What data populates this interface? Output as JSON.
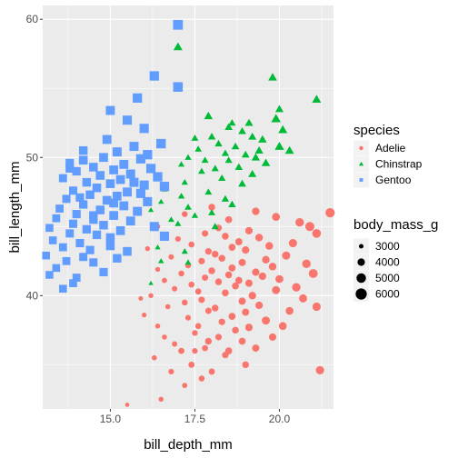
{
  "chart_data": {
    "type": "scatter",
    "xlabel": "bill_depth_mm",
    "ylabel": "bill_length_mm",
    "xlim": [
      13.0,
      21.6
    ],
    "ylim": [
      31.8,
      61.0
    ],
    "x_ticks": [
      15.0,
      17.5,
      20.0
    ],
    "x_tick_labels": [
      "15.0",
      "17.5",
      "20.0"
    ],
    "y_ticks": [
      40,
      50,
      60
    ],
    "y_tick_labels": [
      "40",
      "50",
      "60"
    ],
    "grid": true,
    "panel_background": "#ebebeb",
    "legend_position": "right",
    "legend": {
      "color_title": "species",
      "size_title": "body_mass_g",
      "size_levels": [
        3000,
        4000,
        5000,
        6000
      ],
      "size_labels": [
        "3000",
        "4000",
        "5000",
        "6000"
      ]
    },
    "series": [
      {
        "name": "Adelie",
        "color": "#F8766D",
        "marker": "circle",
        "points": [
          [
            15.5,
            32.1,
            2900
          ],
          [
            16.5,
            32.5,
            3100
          ],
          [
            17.2,
            33.5,
            3200
          ],
          [
            17.7,
            34.0,
            3400
          ],
          [
            16.8,
            34.5,
            3300
          ],
          [
            18.0,
            34.5,
            3500
          ],
          [
            21.2,
            34.6,
            4400
          ],
          [
            19.0,
            35.0,
            3700
          ],
          [
            17.4,
            35.0,
            3500
          ],
          [
            16.3,
            35.5,
            3150
          ],
          [
            18.4,
            35.7,
            3600
          ],
          [
            17.1,
            36.0,
            3500
          ],
          [
            18.5,
            36.0,
            3800
          ],
          [
            19.3,
            36.2,
            3900
          ],
          [
            17.8,
            36.2,
            3450
          ],
          [
            16.9,
            36.5,
            3250
          ],
          [
            17.9,
            36.7,
            3700
          ],
          [
            18.9,
            36.7,
            3800
          ],
          [
            16.6,
            37.0,
            3150
          ],
          [
            19.8,
            37.0,
            3950
          ],
          [
            18.2,
            37.0,
            3600
          ],
          [
            17.5,
            37.3,
            3350
          ],
          [
            18.7,
            37.5,
            3700
          ],
          [
            19.1,
            37.7,
            4000
          ],
          [
            16.4,
            37.8,
            3100
          ],
          [
            17.6,
            37.8,
            3400
          ],
          [
            20.1,
            37.8,
            4200
          ],
          [
            18.3,
            38.1,
            3650
          ],
          [
            19.6,
            38.2,
            4300
          ],
          [
            17.3,
            38.4,
            3300
          ],
          [
            18.6,
            38.5,
            3800
          ],
          [
            16.0,
            38.6,
            3050
          ],
          [
            19.0,
            38.8,
            3900
          ],
          [
            17.9,
            38.9,
            3550
          ],
          [
            20.3,
            38.9,
            4150
          ],
          [
            18.1,
            39.1,
            3700
          ],
          [
            16.7,
            39.2,
            3150
          ],
          [
            21.1,
            39.2,
            4400
          ],
          [
            19.4,
            39.3,
            4000
          ],
          [
            17.2,
            39.5,
            3400
          ],
          [
            18.9,
            39.6,
            3900
          ],
          [
            17.7,
            39.7,
            3600
          ],
          [
            20.7,
            39.8,
            4300
          ],
          [
            16.2,
            40.0,
            3100
          ],
          [
            19.2,
            40.0,
            4050
          ],
          [
            18.4,
            40.2,
            3750
          ],
          [
            17.6,
            40.3,
            3500
          ],
          [
            19.9,
            40.4,
            4250
          ],
          [
            16.9,
            40.5,
            3250
          ],
          [
            20.5,
            40.6,
            4450
          ],
          [
            18.7,
            40.7,
            3800
          ],
          [
            17.4,
            40.8,
            3450
          ],
          [
            19.1,
            40.9,
            3950
          ],
          [
            18.2,
            41.0,
            3700
          ],
          [
            16.6,
            41.1,
            3200
          ],
          [
            18.8,
            41.1,
            3850
          ],
          [
            20.0,
            41.2,
            4200
          ],
          [
            17.8,
            41.3,
            3550
          ],
          [
            19.5,
            41.4,
            4000
          ],
          [
            18.5,
            41.5,
            3750
          ],
          [
            17.1,
            41.6,
            3400
          ],
          [
            21.0,
            41.6,
            4700
          ],
          [
            19.3,
            41.7,
            3950
          ],
          [
            18.0,
            41.8,
            3700
          ],
          [
            16.4,
            41.9,
            3100
          ],
          [
            18.6,
            42.0,
            3850
          ],
          [
            19.8,
            42.1,
            4100
          ],
          [
            17.3,
            42.2,
            3450
          ],
          [
            20.8,
            42.3,
            4500
          ],
          [
            18.9,
            42.4,
            3900
          ],
          [
            17.7,
            42.5,
            3600
          ],
          [
            19.6,
            42.6,
            4050
          ],
          [
            18.3,
            42.7,
            3750
          ],
          [
            16.8,
            42.8,
            3250
          ],
          [
            20.2,
            42.9,
            4300
          ],
          [
            18.1,
            43.0,
            3700
          ],
          [
            17.9,
            43.2,
            3650
          ],
          [
            19.0,
            43.3,
            4000
          ],
          [
            16.1,
            43.4,
            3100
          ],
          [
            18.6,
            43.5,
            3800
          ],
          [
            19.7,
            43.6,
            4100
          ],
          [
            17.4,
            43.7,
            3450
          ],
          [
            20.4,
            43.8,
            4350
          ],
          [
            18.8,
            43.9,
            3900
          ],
          [
            17.0,
            44.1,
            3300
          ],
          [
            19.4,
            44.2,
            4050
          ],
          [
            18.4,
            44.3,
            3750
          ],
          [
            17.8,
            44.5,
            3600
          ],
          [
            21.1,
            44.5,
            4600
          ],
          [
            19.1,
            44.7,
            4000
          ],
          [
            18.2,
            44.9,
            3700
          ],
          [
            16.4,
            45.0,
            3150
          ],
          [
            20.6,
            45.3,
            4500
          ],
          [
            18.5,
            45.5,
            3800
          ],
          [
            19.9,
            45.7,
            4200
          ],
          [
            17.2,
            45.9,
            3400
          ],
          [
            19.3,
            46.1,
            4050
          ],
          [
            18.0,
            46.4,
            3700
          ],
          [
            20.9,
            45.0,
            4800
          ],
          [
            21.5,
            46.0,
            4900
          ],
          [
            15.9,
            39.8,
            3000
          ],
          [
            17.5,
            36.0,
            3300
          ]
        ]
      },
      {
        "name": "Chinstrap",
        "color": "#00BA38",
        "marker": "triangle",
        "points": [
          [
            17.0,
            58.0,
            4100
          ],
          [
            19.8,
            55.8,
            4000
          ],
          [
            21.1,
            54.2,
            4100
          ],
          [
            20.0,
            53.5,
            3800
          ],
          [
            17.9,
            53.0,
            3950
          ],
          [
            19.9,
            52.8,
            4300
          ],
          [
            18.6,
            52.5,
            3550
          ],
          [
            20.1,
            52.0,
            4150
          ],
          [
            18.9,
            51.9,
            3700
          ],
          [
            19.2,
            51.5,
            3750
          ],
          [
            17.5,
            51.4,
            3450
          ],
          [
            19.5,
            51.3,
            3900
          ],
          [
            18.2,
            51.0,
            3600
          ],
          [
            18.7,
            50.8,
            3650
          ],
          [
            17.6,
            50.6,
            3400
          ],
          [
            19.4,
            50.5,
            3850
          ],
          [
            18.4,
            50.3,
            3550
          ],
          [
            19.0,
            50.2,
            3700
          ],
          [
            17.3,
            50.0,
            3300
          ],
          [
            18.5,
            49.8,
            3500
          ],
          [
            19.6,
            49.6,
            3950
          ],
          [
            17.1,
            49.5,
            3250
          ],
          [
            18.8,
            49.3,
            3650
          ],
          [
            18.1,
            49.2,
            3500
          ],
          [
            17.7,
            49.0,
            3400
          ],
          [
            19.2,
            48.8,
            3800
          ],
          [
            18.3,
            48.5,
            3550
          ],
          [
            17.2,
            48.2,
            3300
          ],
          [
            18.9,
            48.1,
            3700
          ],
          [
            16.6,
            47.7,
            3200
          ],
          [
            17.9,
            47.5,
            3450
          ],
          [
            17.1,
            47.2,
            3350
          ],
          [
            18.4,
            47.0,
            3550
          ],
          [
            16.5,
            46.8,
            3100
          ],
          [
            18.6,
            46.6,
            3600
          ],
          [
            17.3,
            46.4,
            3400
          ],
          [
            16.2,
            46.2,
            3050
          ],
          [
            18.0,
            46.0,
            3450
          ],
          [
            17.5,
            45.8,
            3300
          ],
          [
            16.8,
            45.5,
            3200
          ],
          [
            17.0,
            45.2,
            3250
          ],
          [
            18.1,
            45.0,
            3500
          ],
          [
            16.4,
            43.5,
            3050
          ],
          [
            17.2,
            43.2,
            3250
          ],
          [
            16.5,
            42.5,
            3100
          ],
          [
            16.2,
            40.9,
            2900
          ],
          [
            17.3,
            42.4,
            3200
          ],
          [
            19.3,
            50.0,
            3850
          ],
          [
            20.3,
            50.5,
            4050
          ],
          [
            18.0,
            51.5,
            3650
          ],
          [
            19.1,
            52.5,
            3800
          ],
          [
            17.8,
            49.8,
            3450
          ],
          [
            18.5,
            52.2,
            3700
          ],
          [
            20.0,
            50.8,
            4200
          ]
        ]
      },
      {
        "name": "Gentoo",
        "color": "#619CFF",
        "marker": "square",
        "points": [
          [
            17.0,
            59.6,
            6000
          ],
          [
            16.3,
            55.9,
            5700
          ],
          [
            17.0,
            55.1,
            5850
          ],
          [
            15.8,
            54.3,
            5650
          ],
          [
            15.0,
            53.4,
            5450
          ],
          [
            15.5,
            52.7,
            5550
          ],
          [
            16.0,
            52.1,
            5600
          ],
          [
            14.9,
            51.3,
            5400
          ],
          [
            16.5,
            51.0,
            5750
          ],
          [
            15.7,
            50.8,
            5500
          ],
          [
            14.2,
            50.5,
            5150
          ],
          [
            15.2,
            50.4,
            5500
          ],
          [
            16.1,
            50.2,
            5700
          ],
          [
            14.8,
            50.0,
            5300
          ],
          [
            15.9,
            49.9,
            5650
          ],
          [
            13.8,
            49.6,
            5000
          ],
          [
            15.4,
            49.5,
            5400
          ],
          [
            14.5,
            49.3,
            5200
          ],
          [
            16.2,
            49.2,
            5650
          ],
          [
            15.1,
            49.1,
            5350
          ],
          [
            14.0,
            49.0,
            5050
          ],
          [
            15.6,
            48.8,
            5500
          ],
          [
            14.7,
            48.7,
            5250
          ],
          [
            16.4,
            48.6,
            5700
          ],
          [
            13.6,
            48.5,
            4850
          ],
          [
            15.3,
            48.4,
            5350
          ],
          [
            14.3,
            48.2,
            5150
          ],
          [
            15.0,
            48.1,
            5300
          ],
          [
            16.0,
            48.0,
            5550
          ],
          [
            14.6,
            47.8,
            5200
          ],
          [
            13.9,
            47.6,
            4950
          ],
          [
            15.5,
            47.5,
            5450
          ],
          [
            14.4,
            47.3,
            5150
          ],
          [
            15.2,
            47.2,
            5300
          ],
          [
            13.7,
            47.0,
            4900
          ],
          [
            14.9,
            46.9,
            5250
          ],
          [
            16.1,
            46.8,
            5550
          ],
          [
            14.2,
            46.6,
            5050
          ],
          [
            15.4,
            46.5,
            5350
          ],
          [
            13.5,
            46.3,
            4800
          ],
          [
            14.7,
            46.2,
            5200
          ],
          [
            15.8,
            46.1,
            5450
          ],
          [
            14.0,
            45.9,
            5000
          ],
          [
            15.1,
            45.8,
            5300
          ],
          [
            13.4,
            45.6,
            4750
          ],
          [
            14.5,
            45.5,
            5100
          ],
          [
            15.6,
            45.4,
            5400
          ],
          [
            13.9,
            45.2,
            4950
          ],
          [
            14.8,
            45.1,
            5200
          ],
          [
            16.3,
            45.0,
            5550
          ],
          [
            13.2,
            44.9,
            4700
          ],
          [
            14.3,
            44.8,
            5050
          ],
          [
            15.3,
            44.7,
            5300
          ],
          [
            13.8,
            44.5,
            4900
          ],
          [
            14.6,
            44.4,
            5100
          ],
          [
            16.6,
            44.3,
            5600
          ],
          [
            13.3,
            44.0,
            4700
          ],
          [
            14.1,
            43.8,
            4950
          ],
          [
            15.0,
            43.6,
            5200
          ],
          [
            13.6,
            43.5,
            4800
          ],
          [
            14.4,
            43.3,
            5000
          ],
          [
            15.5,
            43.2,
            5250
          ],
          [
            13.1,
            42.9,
            4650
          ],
          [
            14.2,
            42.8,
            4900
          ],
          [
            15.2,
            42.7,
            5150
          ],
          [
            13.7,
            42.5,
            4750
          ],
          [
            14.5,
            42.4,
            4950
          ],
          [
            13.4,
            42.0,
            4650
          ],
          [
            14.8,
            41.7,
            5000
          ],
          [
            14.0,
            41.3,
            4800
          ],
          [
            13.9,
            40.9,
            4750
          ],
          [
            13.6,
            40.5,
            4700
          ],
          [
            13.2,
            41.5,
            4650
          ],
          [
            15.1,
            46.7,
            5350
          ],
          [
            14.1,
            47.1,
            5000
          ],
          [
            15.9,
            47.4,
            5600
          ],
          [
            13.8,
            49.2,
            5000
          ],
          [
            16.6,
            47.9,
            5700
          ],
          [
            14.5,
            45.8,
            5100
          ],
          [
            15.0,
            44.2,
            5250
          ],
          [
            14.2,
            49.8,
            5250
          ],
          [
            15.7,
            48.2,
            5550
          ]
        ]
      }
    ]
  }
}
